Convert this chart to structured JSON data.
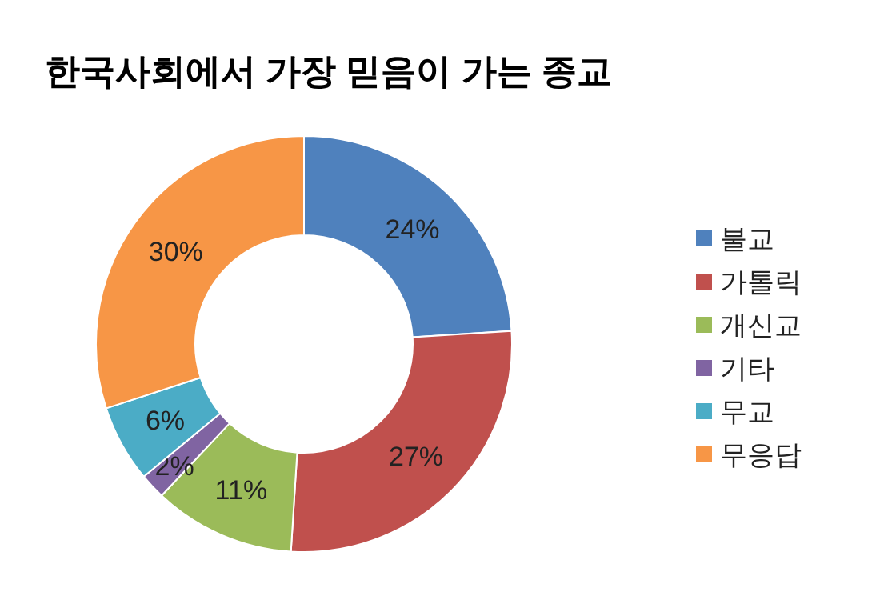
{
  "chart_data": {
    "type": "donut",
    "title": "한국사회에서 가장 믿음이 가는 종교",
    "categories": [
      "불교",
      "가톨릭",
      "개신교",
      "기타",
      "무교",
      "무응답"
    ],
    "values": [
      24,
      27,
      11,
      2,
      6,
      30
    ],
    "value_labels": [
      "24%",
      "27%",
      "11%",
      "2%",
      "6%",
      "30%"
    ],
    "colors": [
      "#4f81bd",
      "#c0504d",
      "#9bbb59",
      "#8064a2",
      "#4bacc6",
      "#f79646"
    ],
    "legend": "right"
  }
}
